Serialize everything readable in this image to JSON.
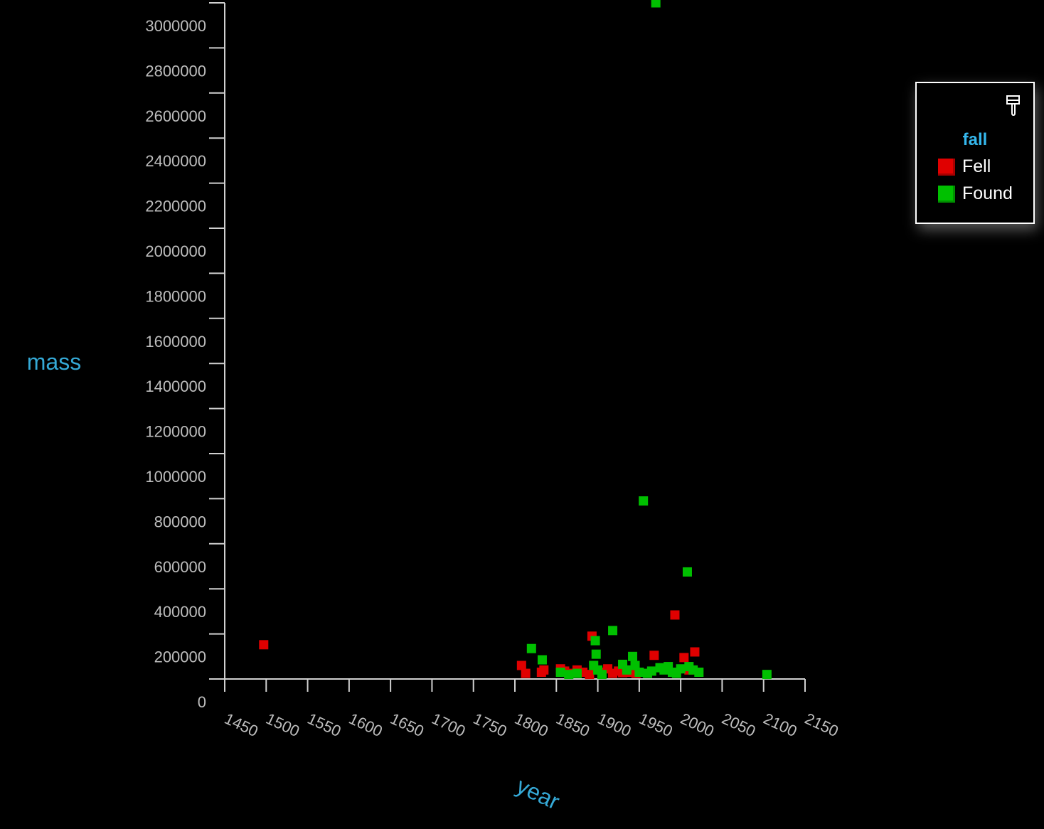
{
  "chart_data": {
    "type": "scatter",
    "xlabel": "year",
    "ylabel": "mass",
    "xlim": [
      1450,
      2150
    ],
    "ylim": [
      0,
      3000000
    ],
    "x_ticks": [
      "1450",
      "1500",
      "1550",
      "1600",
      "1650",
      "1700",
      "1750",
      "1800",
      "1850",
      "1900",
      "1950",
      "2000",
      "2050",
      "2100",
      "2150"
    ],
    "y_ticks": [
      "0",
      "200000",
      "400000",
      "600000",
      "800000",
      "1000000",
      "1200000",
      "1400000",
      "1600000",
      "1800000",
      "2000000",
      "2200000",
      "2400000",
      "2600000",
      "2800000",
      "3000000"
    ],
    "grid": false,
    "legend": {
      "title": "fall",
      "position": "top-right",
      "entries": [
        {
          "label": "Fell",
          "color": "#e00000"
        },
        {
          "label": "Found",
          "color": "#00c000"
        }
      ]
    },
    "series": [
      {
        "name": "Fell",
        "color": "#e00000",
        "points": [
          [
            1497,
            152000
          ],
          [
            1808,
            60000
          ],
          [
            1813,
            25000
          ],
          [
            1832,
            30000
          ],
          [
            1835,
            40000
          ],
          [
            1855,
            45000
          ],
          [
            1860,
            35000
          ],
          [
            1865,
            25000
          ],
          [
            1875,
            40000
          ],
          [
            1882,
            30000
          ],
          [
            1890,
            20000
          ],
          [
            1893,
            190000
          ],
          [
            1905,
            30000
          ],
          [
            1912,
            45000
          ],
          [
            1918,
            25000
          ],
          [
            1925,
            35000
          ],
          [
            1930,
            28000
          ],
          [
            1940,
            30000
          ],
          [
            1946,
            25000
          ],
          [
            1968,
            105000
          ],
          [
            1993,
            284000
          ],
          [
            2004,
            95000
          ],
          [
            2010,
            40000
          ],
          [
            2017,
            120000
          ]
        ]
      },
      {
        "name": "Found",
        "color": "#00c000",
        "points": [
          [
            1820,
            135000
          ],
          [
            1833,
            85000
          ],
          [
            1855,
            30000
          ],
          [
            1865,
            20000
          ],
          [
            1875,
            25000
          ],
          [
            1895,
            60000
          ],
          [
            1897,
            170000
          ],
          [
            1898,
            110000
          ],
          [
            1900,
            40000
          ],
          [
            1905,
            20000
          ],
          [
            1918,
            215000
          ],
          [
            1930,
            65000
          ],
          [
            1935,
            40000
          ],
          [
            1942,
            100000
          ],
          [
            1945,
            60000
          ],
          [
            1950,
            30000
          ],
          [
            1955,
            790000
          ],
          [
            1960,
            25000
          ],
          [
            1965,
            35000
          ],
          [
            1970,
            3000000
          ],
          [
            1975,
            50000
          ],
          [
            1980,
            40000
          ],
          [
            1985,
            55000
          ],
          [
            1990,
            30000
          ],
          [
            1995,
            25000
          ],
          [
            2000,
            45000
          ],
          [
            2008,
            475000
          ],
          [
            2010,
            55000
          ],
          [
            2015,
            40000
          ],
          [
            2022,
            30000
          ],
          [
            2104,
            20000
          ]
        ]
      }
    ]
  }
}
